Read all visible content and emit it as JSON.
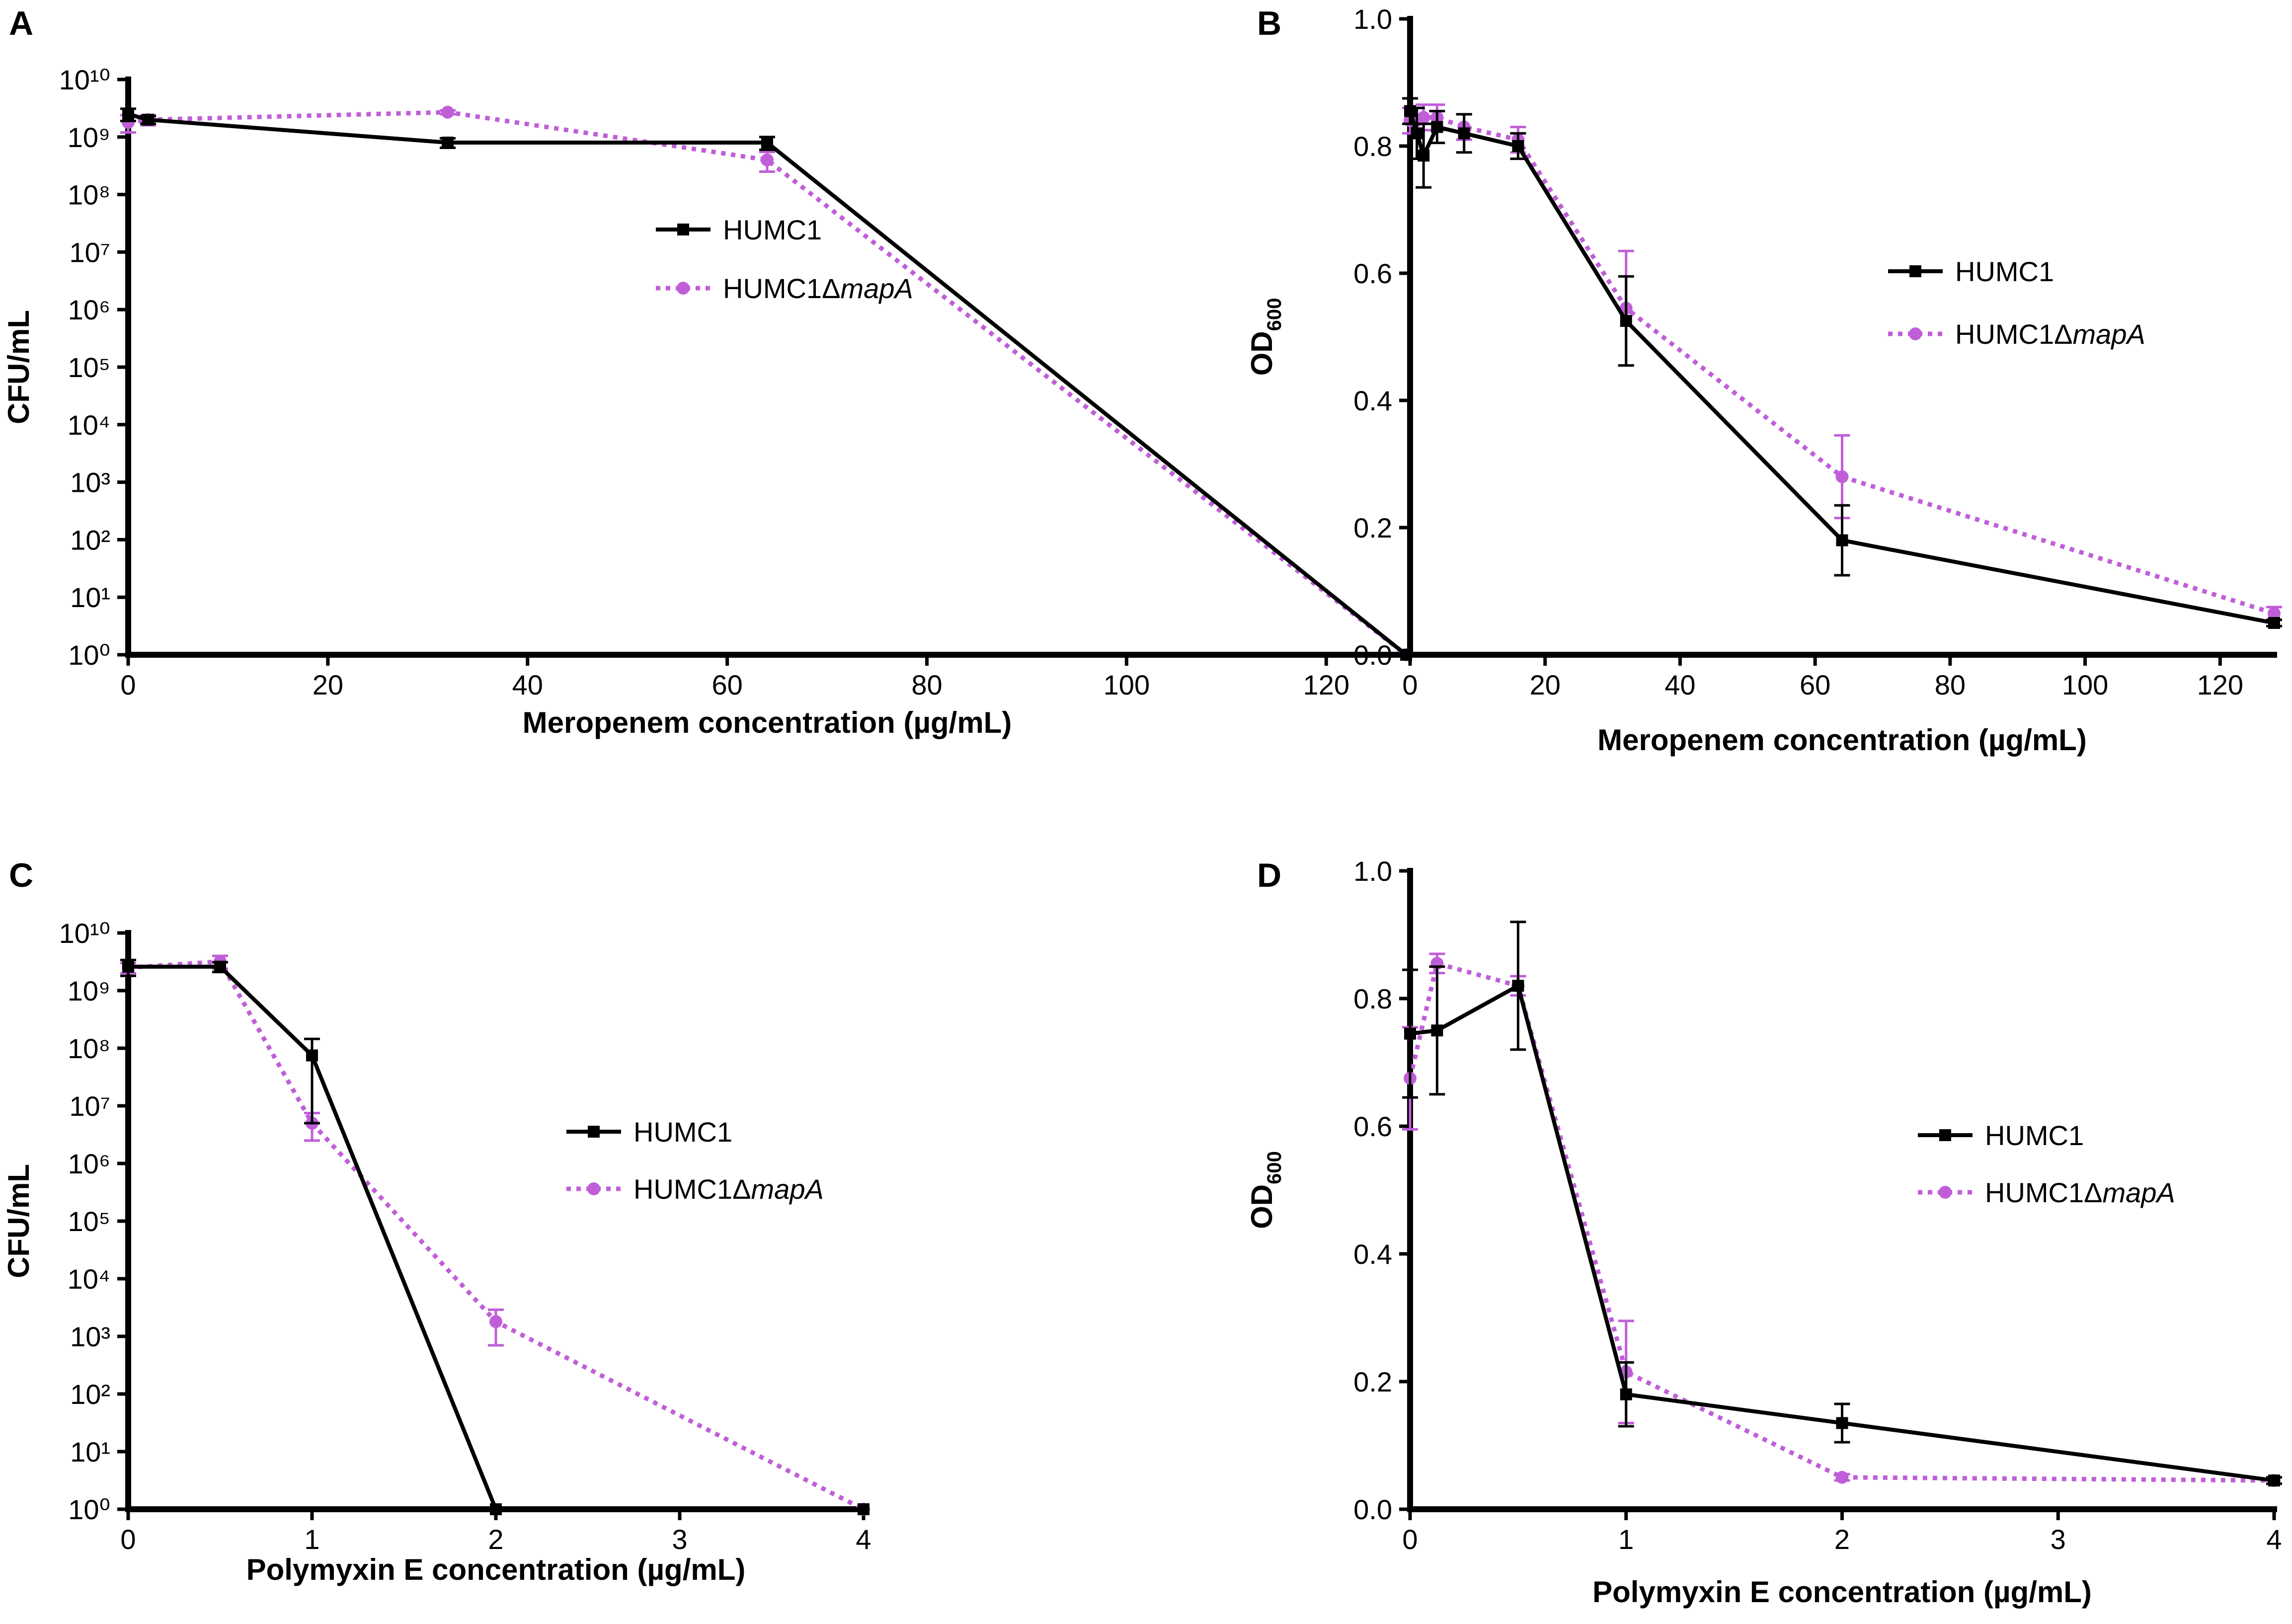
{
  "figure": {
    "background": "#ffffff"
  },
  "series_styles": {
    "HUMC1": {
      "color": "#000000",
      "marker": "square",
      "line": "solid"
    },
    "HUMC1ΔmapA": {
      "color": "#c05ed8",
      "marker": "circle",
      "line": "dotted"
    }
  },
  "chart_data": [
    {
      "panel": "A",
      "type": "line",
      "title": "",
      "xlabel": "Meropenem concentration (µg/mL)",
      "ylabel": "CFU/mL",
      "yscale": "log",
      "xlim": [
        0,
        128
      ],
      "ylim": [
        1,
        10000000000
      ],
      "x_ticks": [
        0,
        20,
        40,
        60,
        80,
        100,
        120
      ],
      "y_ticks": [
        1,
        10,
        100,
        1000,
        10000,
        100000,
        1000000,
        10000000,
        100000000,
        1000000000,
        10000000000
      ],
      "legend_position": "right-middle",
      "series": [
        {
          "name": "HUMC1",
          "legend_base": "HUMC1",
          "legend_italic": "",
          "x": [
            0,
            2,
            32,
            64,
            128
          ],
          "y": [
            2500000000,
            2000000000,
            800000000,
            800000000,
            1
          ],
          "err": [
            600000000,
            300000000,
            150000000,
            200000000,
            0
          ]
        },
        {
          "name": "HUMC1ΔmapA",
          "legend_base": "HUMC1Δ",
          "legend_italic": "mapA",
          "x": [
            0,
            2,
            32,
            64,
            128
          ],
          "y": [
            1800000000,
            2000000000,
            2700000000,
            400000000,
            1
          ],
          "err": [
            600000000,
            400000000,
            200000000,
            150000000,
            0
          ]
        }
      ]
    },
    {
      "panel": "B",
      "type": "line",
      "title": "",
      "xlabel": "Meropenem concentration (µg/mL)",
      "ylabel_base": "OD",
      "ylabel_sub": "600",
      "yscale": "linear",
      "xlim": [
        0,
        128
      ],
      "ylim": [
        0,
        1
      ],
      "x_ticks": [
        0,
        20,
        40,
        60,
        80,
        100,
        120
      ],
      "y_ticks": [
        0.0,
        0.2,
        0.4,
        0.6,
        0.8,
        1.0
      ],
      "y_tick_labels": [
        "0.0",
        "0.2",
        "0.4",
        "0.6",
        "0.8",
        "1.0"
      ],
      "legend_position": "right-middle",
      "series": [
        {
          "name": "HUMC1",
          "legend_base": "HUMC1",
          "legend_italic": "",
          "x": [
            0,
            1,
            2,
            4,
            8,
            16,
            32,
            64,
            128
          ],
          "y": [
            0.855,
            0.82,
            0.785,
            0.83,
            0.82,
            0.8,
            0.525,
            0.18,
            0.05
          ],
          "err": [
            0.02,
            0.04,
            0.05,
            0.025,
            0.03,
            0.02,
            0.07,
            0.055,
            0.005
          ]
        },
        {
          "name": "HUMC1ΔmapA",
          "legend_base": "HUMC1Δ",
          "legend_italic": "mapA",
          "x": [
            0,
            1,
            2,
            4,
            8,
            16,
            32,
            64,
            128
          ],
          "y": [
            0.84,
            0.84,
            0.845,
            0.845,
            0.83,
            0.81,
            0.545,
            0.28,
            0.065
          ],
          "err": [
            0.02,
            0.02,
            0.02,
            0.02,
            0.02,
            0.02,
            0.09,
            0.065,
            0.01
          ]
        }
      ]
    },
    {
      "panel": "C",
      "type": "line",
      "title": "",
      "xlabel": "Polymyxin E concentration (µg/mL)",
      "ylabel": "CFU/mL",
      "yscale": "log",
      "xlim": [
        0,
        4
      ],
      "ylim": [
        1,
        10000000000
      ],
      "x_ticks": [
        0,
        1,
        2,
        3,
        4
      ],
      "y_ticks": [
        1,
        10,
        100,
        1000,
        10000,
        100000,
        1000000,
        10000000,
        100000000,
        1000000000,
        10000000000
      ],
      "legend_position": "right-middle",
      "series": [
        {
          "name": "HUMC1",
          "legend_base": "HUMC1",
          "legend_italic": "",
          "x": [
            0,
            0.5,
            1,
            2,
            4
          ],
          "y": [
            2600000000,
            2600000000,
            75000000,
            1,
            1
          ],
          "err": [
            800000000,
            500000000,
            70000000,
            0,
            0
          ]
        },
        {
          "name": "HUMC1ΔmapA",
          "legend_base": "HUMC1Δ",
          "legend_italic": "mapA",
          "x": [
            0,
            0.5,
            1,
            2,
            4
          ],
          "y": [
            2500000000,
            3200000000,
            5000000,
            1800,
            1
          ],
          "err": [
            500000000,
            800000000,
            2500000,
            1100,
            0
          ]
        }
      ]
    },
    {
      "panel": "D",
      "type": "line",
      "title": "",
      "xlabel": "Polymyxin E concentration (µg/mL)",
      "ylabel_base": "OD",
      "ylabel_sub": "600",
      "yscale": "linear",
      "xlim": [
        0,
        4
      ],
      "ylim": [
        0,
        1
      ],
      "x_ticks": [
        0,
        1,
        2,
        3,
        4
      ],
      "y_ticks": [
        0.0,
        0.2,
        0.4,
        0.6,
        0.8,
        1.0
      ],
      "y_tick_labels": [
        "0.0",
        "0.2",
        "0.4",
        "0.6",
        "0.8",
        "1.0"
      ],
      "legend_position": "right-middle",
      "series": [
        {
          "name": "HUMC1",
          "legend_base": "HUMC1",
          "legend_italic": "",
          "x": [
            0,
            0.125,
            0.5,
            1,
            2,
            4
          ],
          "y": [
            0.745,
            0.75,
            0.82,
            0.18,
            0.135,
            0.045
          ],
          "err": [
            0.1,
            0.1,
            0.1,
            0.05,
            0.03,
            0.005
          ]
        },
        {
          "name": "HUMC1ΔmapA",
          "legend_base": "HUMC1Δ",
          "legend_italic": "mapA",
          "x": [
            0,
            0.125,
            0.5,
            1,
            2,
            4
          ],
          "y": [
            0.675,
            0.855,
            0.82,
            0.215,
            0.05,
            0.045
          ],
          "err": [
            0.08,
            0.015,
            0.015,
            0.08,
            0.005,
            0.005
          ]
        }
      ]
    }
  ]
}
